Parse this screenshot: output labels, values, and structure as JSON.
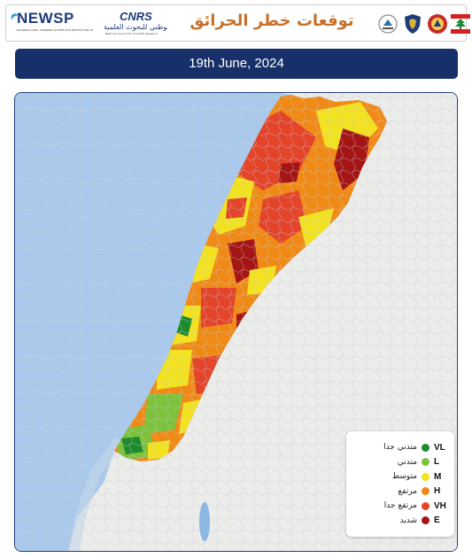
{
  "header": {
    "title": "توقعات خطر الحرائق",
    "logos": {
      "newsp": {
        "word": "NEWSP",
        "subtitle": "NATIONAL EARLY WARNING SYSTEM FOR PROTECTION OF LEBANESE FOREST"
      },
      "cnrs": {
        "mark": "CNRS",
        "arabic": "المجلس الوطني للبحوث العلمية",
        "subtitle": "National Council for Scientific Research"
      },
      "emblems": [
        "ministry-emblem",
        "internal-security-emblem",
        "civil-defense-emblem",
        "lebanese-cedar-emblem"
      ]
    }
  },
  "date": "19th June, 2024",
  "legend": {
    "items": [
      {
        "code": "VL",
        "label_ar": "متدني جدا",
        "color": "#1e8a2e"
      },
      {
        "code": "L",
        "label_ar": "متدني",
        "color": "#7cc23c"
      },
      {
        "code": "M",
        "label_ar": "متوسط",
        "color": "#f2e21f"
      },
      {
        "code": "H",
        "label_ar": "مرتفع",
        "color": "#f08a16"
      },
      {
        "code": "VH",
        "label_ar": "مرتفع جدا",
        "color": "#e3442a"
      },
      {
        "code": "E",
        "label_ar": "شديد",
        "color": "#a51515"
      }
    ]
  },
  "colors": {
    "sea": "#a9c9ec",
    "land": "#ededea",
    "banner": "#17306a",
    "title": "#c7712b"
  }
}
